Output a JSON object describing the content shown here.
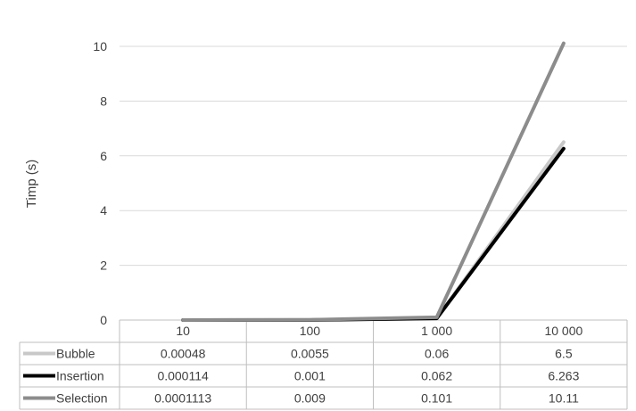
{
  "chart_data": {
    "type": "line",
    "title": "",
    "xlabel": "",
    "ylabel": "Timp (s)",
    "categories": [
      "10",
      "100",
      "1 000",
      "10 000"
    ],
    "ylim": [
      0,
      10
    ],
    "yticks": [
      0,
      2,
      4,
      6,
      8,
      10
    ],
    "grid": true,
    "legend": "data-table",
    "series": [
      {
        "name": "Bubble",
        "color": "#c8c8c8",
        "values": [
          0.00048,
          0.0055,
          0.06,
          6.5
        ],
        "labels": [
          "0.00048",
          "0.0055",
          "0.06",
          "6.5"
        ]
      },
      {
        "name": "Insertion",
        "color": "#000000",
        "values": [
          0.000114,
          0.001,
          0.062,
          6.263
        ],
        "labels": [
          "0.000114",
          "0.001",
          "0.062",
          "6.263"
        ]
      },
      {
        "name": "Selection",
        "color": "#8c8c8c",
        "values": [
          0.0001113,
          0.009,
          0.101,
          10.11
        ],
        "labels": [
          "0.0001113",
          "0.009",
          "0.101",
          "10.11"
        ]
      }
    ]
  }
}
